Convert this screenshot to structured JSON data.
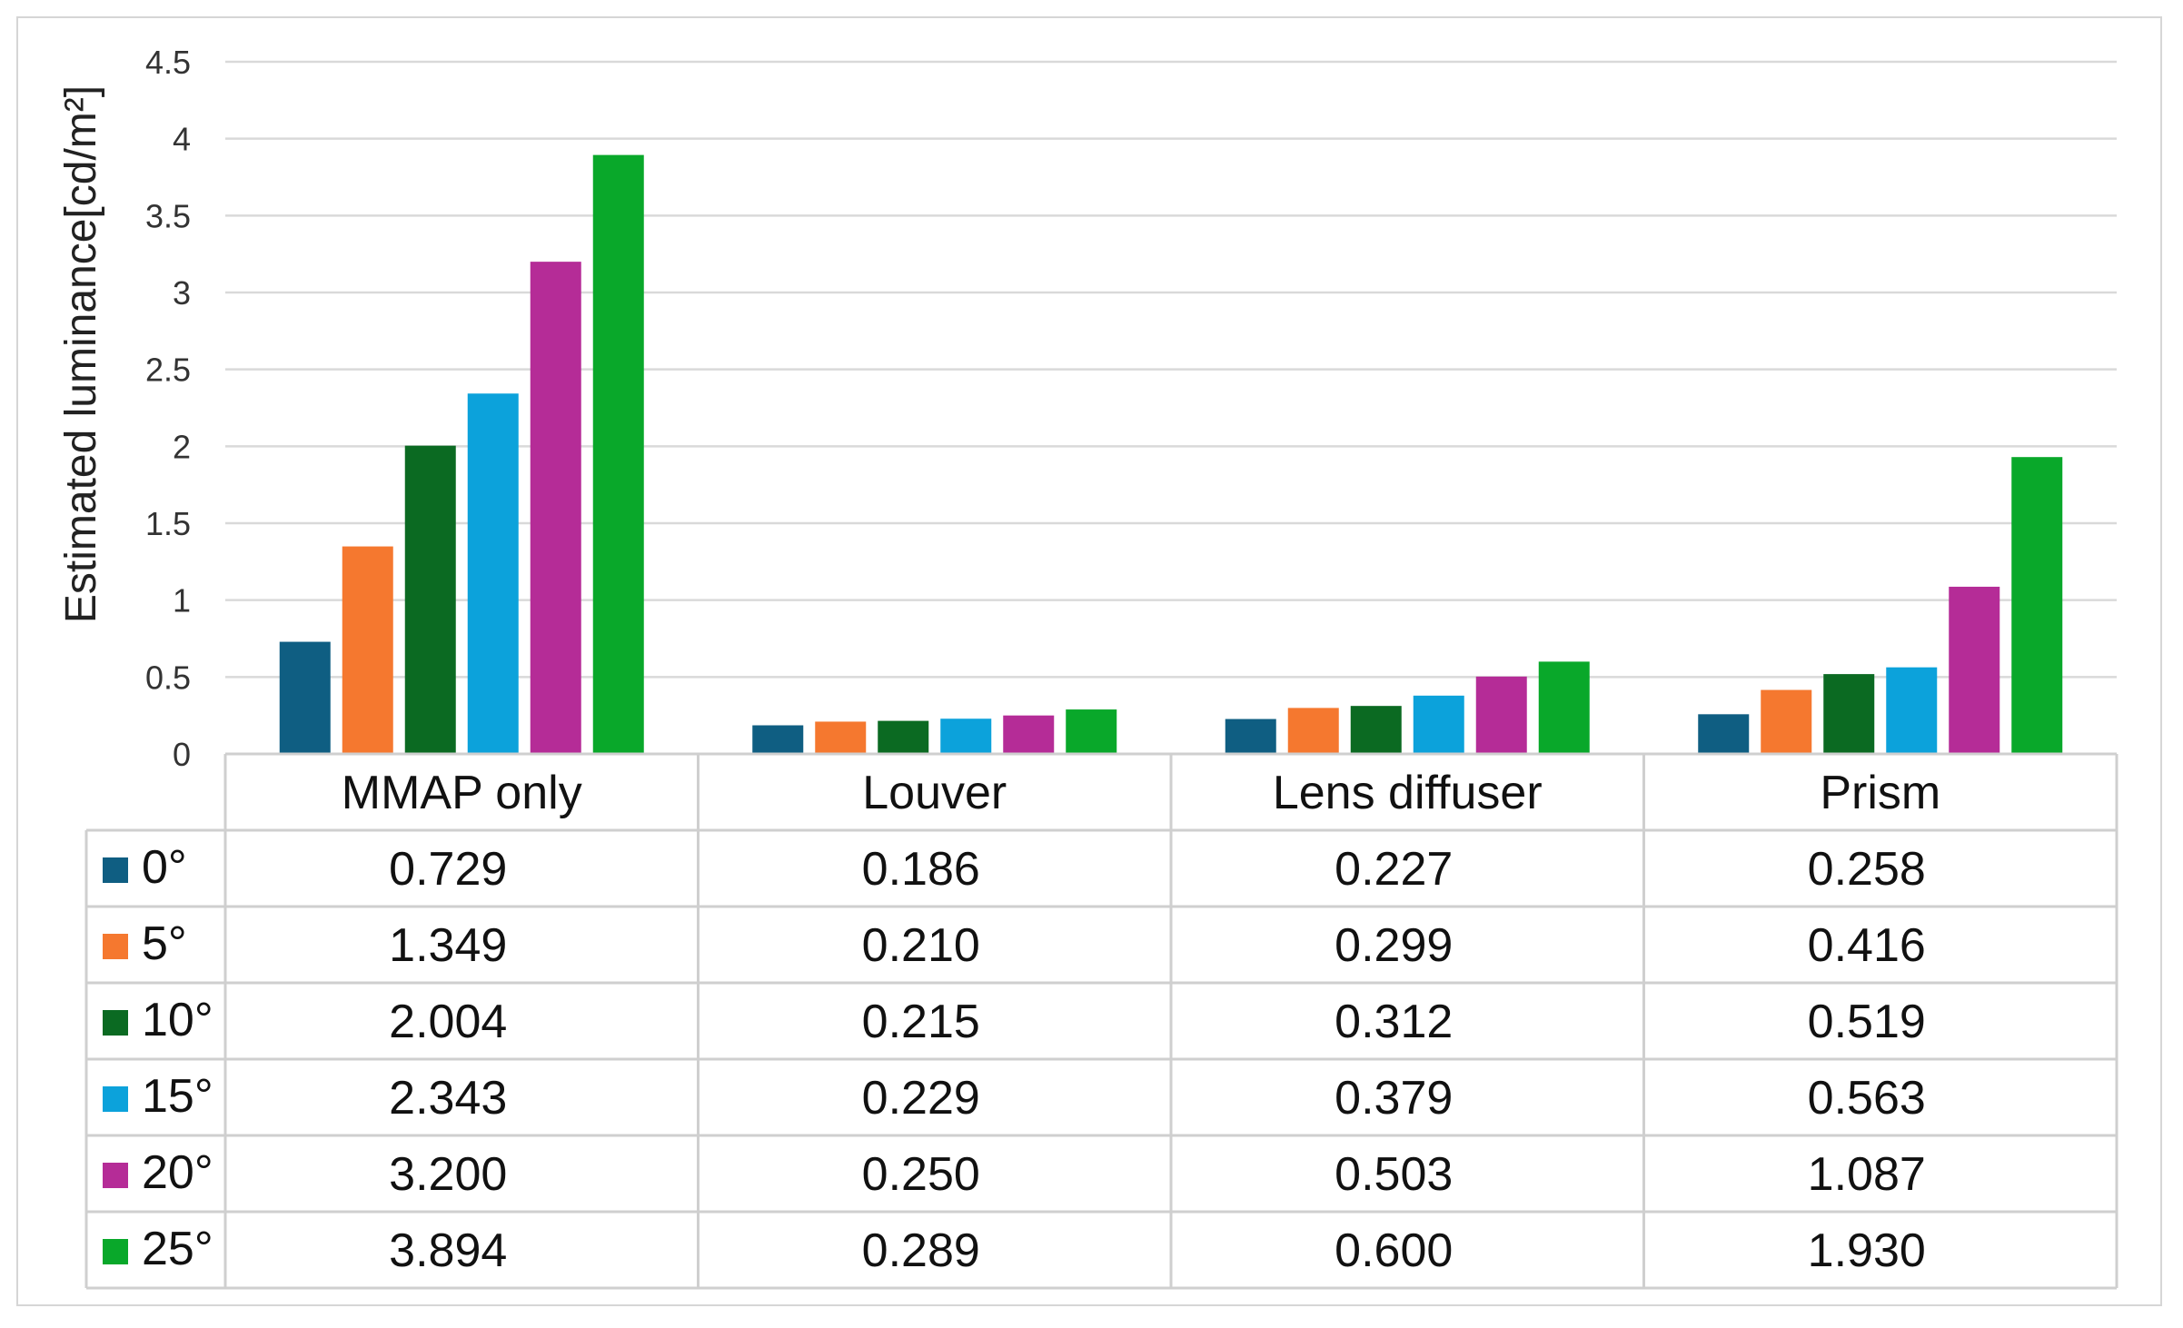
{
  "chart_data": {
    "type": "bar",
    "ylabel": "Estimated luminance[cd/m²]",
    "ylim": [
      0,
      4.5
    ],
    "yticks": [
      0,
      0.5,
      1,
      1.5,
      2,
      2.5,
      3,
      3.5,
      4,
      4.5
    ],
    "ytick_labels": [
      "0",
      "0.5",
      "1",
      "1.5",
      "2",
      "2.5",
      "3",
      "3.5",
      "4",
      "4.5"
    ],
    "categories": [
      "MMAP only",
      "Louver",
      "Lens diffuser",
      "Prism"
    ],
    "series": [
      {
        "name": "0°",
        "color": "#0f5e82",
        "values": [
          0.729,
          0.186,
          0.227,
          0.258
        ],
        "labels": [
          "0.729",
          "0.186",
          "0.227",
          "0.258"
        ]
      },
      {
        "name": "5°",
        "color": "#f5782f",
        "values": [
          1.349,
          0.21,
          0.299,
          0.416
        ],
        "labels": [
          "1.349",
          "0.210",
          "0.299",
          "0.416"
        ]
      },
      {
        "name": "10°",
        "color": "#0b6a22",
        "values": [
          2.004,
          0.215,
          0.312,
          0.519
        ],
        "labels": [
          "2.004",
          "0.215",
          "0.312",
          "0.519"
        ]
      },
      {
        "name": "15°",
        "color": "#0ca2db",
        "values": [
          2.343,
          0.229,
          0.379,
          0.563
        ],
        "labels": [
          "2.343",
          "0.229",
          "0.379",
          "0.563"
        ]
      },
      {
        "name": "20°",
        "color": "#b52c97",
        "values": [
          3.2,
          0.25,
          0.503,
          1.087
        ],
        "labels": [
          "3.200",
          "0.250",
          "0.503",
          "1.087"
        ]
      },
      {
        "name": "25°",
        "color": "#09a82a",
        "values": [
          3.894,
          0.289,
          0.6,
          1.93
        ],
        "labels": [
          "3.894",
          "0.289",
          "0.600",
          "1.930"
        ]
      }
    ],
    "grid": true,
    "legend": "data-table"
  }
}
